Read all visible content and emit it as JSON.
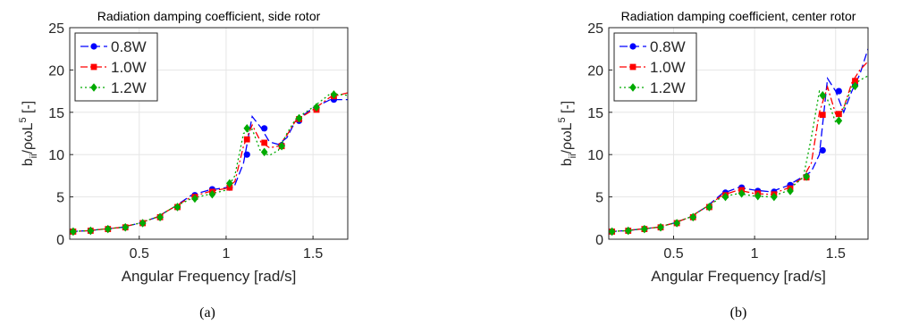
{
  "ylabel_main": "b",
  "ylabel_sub": "ii",
  "ylabel_mid": "/ρωL",
  "ylabel_sup": "5",
  "ylabel_tail": " [-]",
  "chart_data": [
    {
      "type": "line",
      "title": "Radiation damping coefficient, side rotor",
      "caption": "(a)",
      "xlabel": "Angular Frequency [rad/s]",
      "xlim": [
        0.1,
        1.7
      ],
      "ylim": [
        0,
        25
      ],
      "xticks": [
        0.5,
        1,
        1.5
      ],
      "xtick_labels": [
        "0.5",
        "1",
        "1.5"
      ],
      "yticks": [
        0,
        5,
        10,
        15,
        20,
        25
      ],
      "ytick_labels": [
        "0",
        "5",
        "10",
        "15",
        "20",
        "25"
      ],
      "grid": true,
      "legend_position": "top-left",
      "series": [
        {
          "name": "0.8W",
          "color": "#0000ff",
          "marker": "circle",
          "dash": "dash",
          "curve_x": [
            0.1,
            0.2,
            0.3,
            0.4,
            0.5,
            0.6,
            0.7,
            0.8,
            0.9,
            1.0,
            1.05,
            1.1,
            1.15,
            1.2,
            1.25,
            1.3,
            1.35,
            1.4,
            1.5,
            1.6,
            1.7
          ],
          "curve_y": [
            0.9,
            1.0,
            1.2,
            1.4,
            1.9,
            2.6,
            3.8,
            5.2,
            5.8,
            6.1,
            6.4,
            9.0,
            14.5,
            13.2,
            11.5,
            11.2,
            12.0,
            14.0,
            15.5,
            16.5,
            16.5
          ],
          "marker_x": [
            0.12,
            0.22,
            0.32,
            0.42,
            0.52,
            0.62,
            0.72,
            0.82,
            0.92,
            1.02,
            1.12,
            1.22,
            1.32,
            1.42,
            1.52,
            1.62
          ],
          "marker_y": [
            0.9,
            1.0,
            1.2,
            1.4,
            1.9,
            2.6,
            3.8,
            5.2,
            5.9,
            6.1,
            10.0,
            13.1,
            11.1,
            14.0,
            15.5,
            16.5
          ]
        },
        {
          "name": "1.0W",
          "color": "#ff0000",
          "marker": "square",
          "dash": "dashdot",
          "curve_x": [
            0.1,
            0.2,
            0.3,
            0.4,
            0.5,
            0.6,
            0.7,
            0.8,
            0.9,
            1.0,
            1.05,
            1.1,
            1.15,
            1.2,
            1.25,
            1.3,
            1.35,
            1.4,
            1.5,
            1.6,
            1.7
          ],
          "curve_y": [
            0.9,
            1.0,
            1.2,
            1.4,
            1.9,
            2.6,
            3.8,
            5.0,
            5.6,
            6.0,
            6.8,
            11.0,
            13.5,
            11.5,
            10.8,
            11.0,
            12.3,
            14.0,
            15.3,
            16.8,
            17.3
          ],
          "marker_x": [
            0.12,
            0.22,
            0.32,
            0.42,
            0.52,
            0.62,
            0.72,
            0.82,
            0.92,
            1.02,
            1.12,
            1.22,
            1.32,
            1.42,
            1.52,
            1.62
          ],
          "marker_y": [
            0.9,
            1.0,
            1.2,
            1.4,
            1.9,
            2.6,
            3.8,
            5.0,
            5.6,
            6.1,
            11.8,
            11.4,
            11.0,
            14.2,
            15.3,
            16.9
          ]
        },
        {
          "name": "1.2W",
          "color": "#00aa00",
          "marker": "diamond",
          "dash": "dot",
          "curve_x": [
            0.1,
            0.2,
            0.3,
            0.4,
            0.5,
            0.6,
            0.7,
            0.8,
            0.9,
            1.0,
            1.05,
            1.1,
            1.15,
            1.2,
            1.25,
            1.3,
            1.35,
            1.4,
            1.5,
            1.6,
            1.7
          ],
          "curve_y": [
            0.9,
            1.0,
            1.2,
            1.4,
            1.9,
            2.6,
            3.8,
            4.8,
            5.3,
            5.8,
            7.5,
            12.5,
            13.0,
            10.3,
            9.9,
            10.5,
            12.5,
            14.2,
            15.6,
            17.2,
            17.0
          ],
          "marker_x": [
            0.12,
            0.22,
            0.32,
            0.42,
            0.52,
            0.62,
            0.72,
            0.82,
            0.92,
            1.02,
            1.12,
            1.22,
            1.32,
            1.42,
            1.52,
            1.62
          ],
          "marker_y": [
            0.9,
            1.0,
            1.2,
            1.4,
            1.9,
            2.6,
            3.8,
            4.8,
            5.3,
            6.6,
            13.1,
            10.3,
            11.0,
            14.3,
            15.6,
            17.1
          ]
        }
      ]
    },
    {
      "type": "line",
      "title": "Radiation damping coefficient, center rotor",
      "caption": "(b)",
      "xlabel": "Angular Frequency [rad/s]",
      "xlim": [
        0.1,
        1.7
      ],
      "ylim": [
        0,
        25
      ],
      "xticks": [
        0.5,
        1,
        1.5
      ],
      "xtick_labels": [
        "0.5",
        "1",
        "1.5"
      ],
      "yticks": [
        0,
        5,
        10,
        15,
        20,
        25
      ],
      "ytick_labels": [
        "0",
        "5",
        "10",
        "15",
        "20",
        "25"
      ],
      "grid": true,
      "legend_position": "top-left",
      "series": [
        {
          "name": "0.8W",
          "color": "#0000ff",
          "marker": "circle",
          "dash": "dash",
          "curve_x": [
            0.1,
            0.2,
            0.3,
            0.4,
            0.5,
            0.6,
            0.7,
            0.8,
            0.9,
            1.0,
            1.1,
            1.2,
            1.3,
            1.35,
            1.4,
            1.45,
            1.5,
            1.55,
            1.6,
            1.65,
            1.7
          ],
          "curve_y": [
            0.9,
            1.0,
            1.2,
            1.4,
            1.9,
            2.6,
            3.8,
            5.4,
            6.1,
            5.8,
            5.6,
            6.3,
            7.4,
            8.0,
            10.0,
            19.0,
            17.5,
            15.0,
            17.5,
            19.5,
            22.5
          ],
          "marker_x": [
            0.12,
            0.22,
            0.32,
            0.42,
            0.52,
            0.62,
            0.72,
            0.82,
            0.92,
            1.02,
            1.12,
            1.22,
            1.32,
            1.42,
            1.52,
            1.62
          ],
          "marker_y": [
            0.9,
            1.0,
            1.2,
            1.4,
            1.9,
            2.6,
            3.8,
            5.5,
            6.1,
            5.7,
            5.6,
            6.4,
            7.4,
            10.5,
            17.5,
            18.2
          ]
        },
        {
          "name": "1.0W",
          "color": "#ff0000",
          "marker": "square",
          "dash": "dashdot",
          "curve_x": [
            0.1,
            0.2,
            0.3,
            0.4,
            0.5,
            0.6,
            0.7,
            0.8,
            0.9,
            1.0,
            1.1,
            1.2,
            1.3,
            1.35,
            1.4,
            1.45,
            1.5,
            1.55,
            1.6,
            1.65,
            1.7
          ],
          "curve_y": [
            0.9,
            1.0,
            1.2,
            1.4,
            1.9,
            2.6,
            3.8,
            5.2,
            5.8,
            5.4,
            5.3,
            6.0,
            7.3,
            9.0,
            15.0,
            18.0,
            14.8,
            15.5,
            18.5,
            20.0,
            21.0
          ],
          "marker_x": [
            0.12,
            0.22,
            0.32,
            0.42,
            0.52,
            0.62,
            0.72,
            0.82,
            0.92,
            1.02,
            1.12,
            1.22,
            1.32,
            1.42,
            1.52,
            1.62
          ],
          "marker_y": [
            0.9,
            1.0,
            1.2,
            1.4,
            1.9,
            2.6,
            3.8,
            5.2,
            5.8,
            5.4,
            5.3,
            6.0,
            7.3,
            14.7,
            14.8,
            18.7
          ]
        },
        {
          "name": "1.2W",
          "color": "#00aa00",
          "marker": "diamond",
          "dash": "dot",
          "curve_x": [
            0.1,
            0.2,
            0.3,
            0.4,
            0.5,
            0.6,
            0.7,
            0.8,
            0.9,
            1.0,
            1.1,
            1.2,
            1.3,
            1.35,
            1.4,
            1.45,
            1.5,
            1.55,
            1.6,
            1.65,
            1.7
          ],
          "curve_y": [
            0.9,
            1.0,
            1.2,
            1.4,
            1.9,
            2.6,
            3.8,
            5.0,
            5.4,
            5.1,
            5.0,
            5.7,
            7.3,
            12.0,
            17.5,
            16.5,
            13.8,
            15.5,
            18.0,
            18.8,
            19.3
          ],
          "marker_x": [
            0.12,
            0.22,
            0.32,
            0.42,
            0.52,
            0.62,
            0.72,
            0.82,
            0.92,
            1.02,
            1.12,
            1.22,
            1.32,
            1.42,
            1.52,
            1.62
          ],
          "marker_y": [
            0.9,
            1.0,
            1.2,
            1.4,
            1.9,
            2.6,
            3.8,
            5.0,
            5.4,
            5.1,
            5.0,
            5.7,
            7.4,
            17.0,
            14.0,
            18.1
          ]
        }
      ]
    }
  ]
}
